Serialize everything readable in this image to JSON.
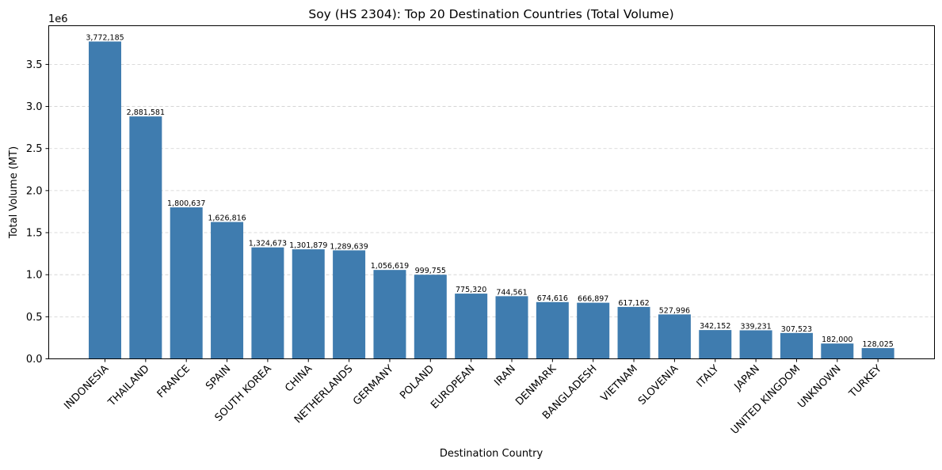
{
  "chart_data": {
    "type": "bar",
    "title": "Soy (HS 2304): Top 20 Destination Countries (Total Volume)",
    "xlabel": "Destination Country",
    "ylabel": "Total Volume (MT)",
    "offset_label": "1e6",
    "ylim": [
      0,
      3960000
    ],
    "yticks": [
      0,
      500000,
      1000000,
      1500000,
      2000000,
      2500000,
      3000000,
      3500000
    ],
    "ytick_labels": [
      "0.0",
      "0.5",
      "1.0",
      "1.5",
      "2.0",
      "2.5",
      "3.0",
      "3.5"
    ],
    "grid": "y, dashed",
    "bar_color": "#3f7caf",
    "categories": [
      "INDONESIA",
      "THAILAND",
      "FRANCE",
      "SPAIN",
      "SOUTH KOREA",
      "CHINA",
      "NETHERLANDS",
      "GERMANY",
      "POLAND",
      "EUROPEAN",
      "IRAN",
      "DENMARK",
      "BANGLADESH",
      "VIETNAM",
      "SLOVENIA",
      "ITALY",
      "JAPAN",
      "UNITED KINGDOM",
      "UNKNOWN",
      "TURKEY"
    ],
    "values": [
      3772185,
      2881581,
      1800637,
      1626816,
      1324673,
      1301879,
      1289639,
      1056619,
      999755,
      775320,
      744561,
      674616,
      666897,
      617162,
      527996,
      342152,
      339231,
      307523,
      182000,
      128025
    ],
    "value_labels": [
      "3,772,185",
      "2,881,581",
      "1,800,637",
      "1,626,816",
      "1,324,673",
      "1,301,879",
      "1,289,639",
      "1,056,619",
      "999,755",
      "775,320",
      "744,561",
      "674,616",
      "666,897",
      "617,162",
      "527,996",
      "342,152",
      "339,231",
      "307,523",
      "182,000",
      "128,025"
    ]
  }
}
